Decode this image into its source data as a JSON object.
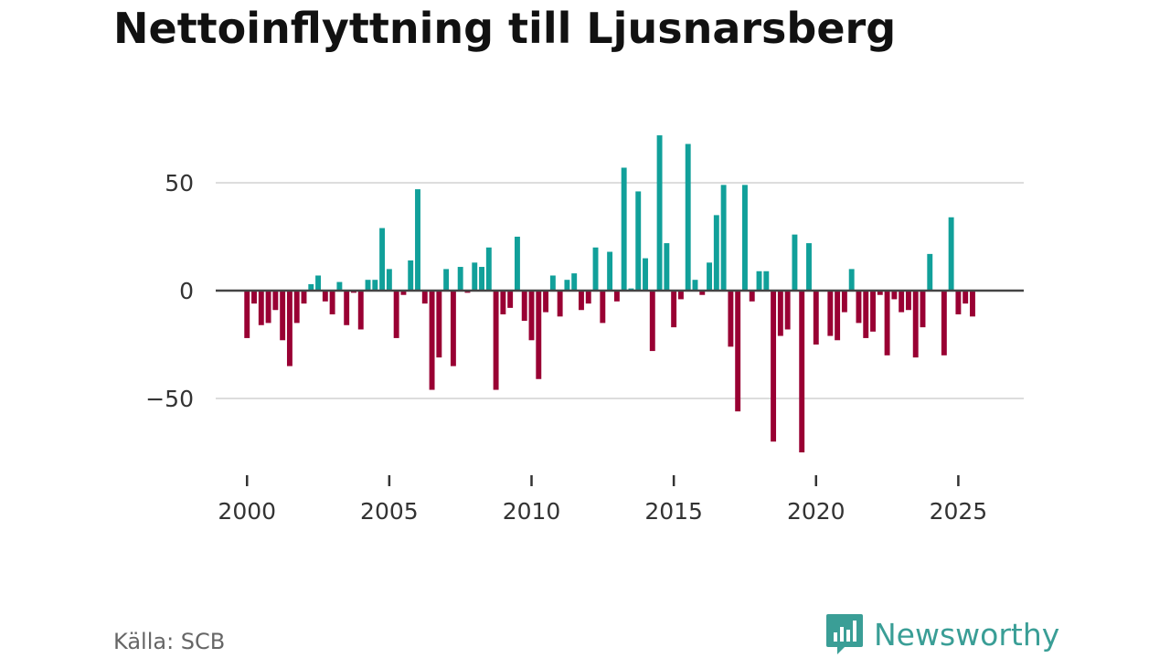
{
  "chart_data": {
    "type": "bar",
    "title": "Nettoinflyttning till Ljusnarsberg",
    "xlabel": "",
    "ylabel": "",
    "ylim": [
      -75,
      75
    ],
    "xlim": [
      1998.9,
      2027.3
    ],
    "grid": true,
    "y_ticks": [
      50,
      0,
      -50
    ],
    "y_tick_labels": [
      "50",
      "0",
      "−50"
    ],
    "x_ticks": [
      2000,
      2005,
      2010,
      2015,
      2020,
      2025
    ],
    "x_tick_labels": [
      "2000",
      "2005",
      "2010",
      "2015",
      "2020",
      "2025"
    ],
    "positive_color": "#11a09a",
    "negative_color": "#990033",
    "series": [
      {
        "name": "Nettoinflyttning",
        "start_year": 2000,
        "periods_per_year": 4,
        "values": [
          -22,
          -6,
          -16,
          -15,
          -9,
          -23,
          -35,
          -15,
          -6,
          3,
          7,
          -5,
          -11,
          4,
          -16,
          -1,
          -18,
          5,
          5,
          29,
          10,
          -22,
          -2,
          14,
          47,
          -6,
          -46,
          -31,
          10,
          -35,
          11,
          -1,
          13,
          11,
          20,
          -46,
          -11,
          -8,
          25,
          -14,
          -23,
          -41,
          -10,
          7,
          -12,
          5,
          8,
          -9,
          -6,
          20,
          -15,
          18,
          -5,
          57,
          1,
          46,
          15,
          -28,
          72,
          22,
          -17,
          -4,
          68,
          5,
          -2,
          13,
          35,
          49,
          -26,
          -56,
          49,
          -5,
          9,
          9,
          -70,
          -21,
          -18,
          26,
          -75,
          22,
          -25,
          0,
          -21,
          -23,
          -10,
          10,
          -15,
          -22,
          -19,
          -2,
          -30,
          -4,
          -10,
          -9,
          -31,
          -17,
          17,
          0,
          -30,
          34,
          -11,
          -6,
          -12
        ]
      }
    ]
  },
  "footer": {
    "source": "Källa: SCB",
    "brand": "Newsworthy"
  }
}
